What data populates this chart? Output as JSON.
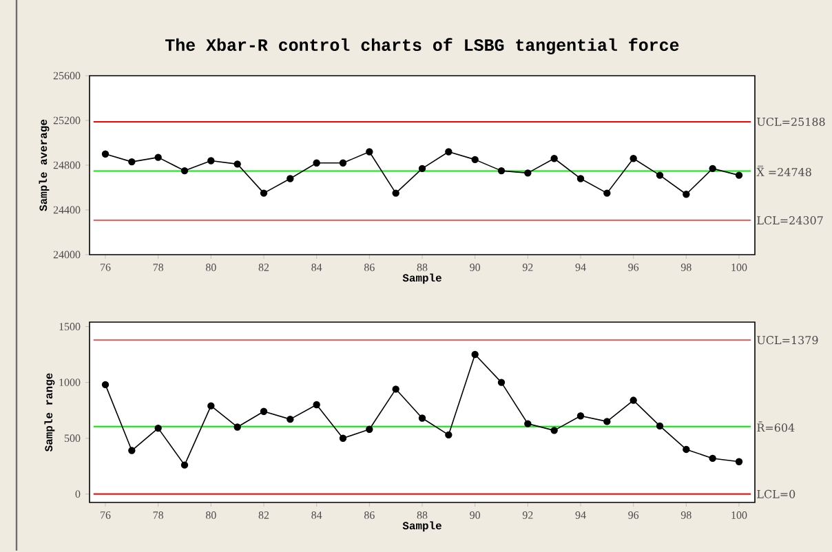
{
  "chart_data": [
    {
      "type": "line",
      "title": "The Xbar-R control charts of LSBG tangential force",
      "xlabel": "Sample",
      "ylabel": "Sample average",
      "x": [
        76,
        77,
        78,
        79,
        80,
        81,
        82,
        83,
        84,
        85,
        86,
        87,
        88,
        89,
        90,
        91,
        92,
        93,
        94,
        95,
        96,
        97,
        98,
        99,
        100
      ],
      "series": [
        {
          "color": "#000000",
          "values": [
            24900,
            24830,
            24870,
            24750,
            24840,
            24810,
            24550,
            24680,
            24820,
            24820,
            24920,
            24550,
            24770,
            24920,
            24850,
            24750,
            24730,
            24860,
            24680,
            24550,
            24860,
            24710,
            24540,
            24770,
            24710
          ]
        }
      ],
      "xlim": [
        75.4,
        100.6
      ],
      "ylim": [
        24000,
        25600
      ],
      "xticks": [
        76,
        78,
        80,
        82,
        84,
        86,
        88,
        90,
        92,
        94,
        96,
        98,
        100
      ],
      "yticks": [
        24000,
        24400,
        24800,
        25200,
        25600
      ],
      "ref_lines": [
        {
          "axis": "y",
          "value": 25188,
          "label": "UCL=25188",
          "color": "#ff0000"
        },
        {
          "axis": "y",
          "value": 24748,
          "label": "X̿ =24748",
          "color": "#00ee00"
        },
        {
          "axis": "y",
          "value": 24307,
          "label": "LCL=24307",
          "color": "#ff5a5a"
        }
      ],
      "marker": "circle",
      "line_style": "solid"
    },
    {
      "type": "line",
      "xlabel": "Sample",
      "ylabel": "Sample range",
      "x": [
        76,
        77,
        78,
        79,
        80,
        81,
        82,
        83,
        84,
        85,
        86,
        87,
        88,
        89,
        90,
        91,
        92,
        93,
        94,
        95,
        96,
        97,
        98,
        99,
        100
      ],
      "series": [
        {
          "color": "#000000",
          "values": [
            980,
            390,
            590,
            260,
            790,
            600,
            740,
            670,
            800,
            500,
            580,
            940,
            680,
            530,
            1250,
            1000,
            630,
            570,
            700,
            650,
            840,
            610,
            400,
            320,
            290
          ]
        }
      ],
      "xlim": [
        75.4,
        100.6
      ],
      "ylim": [
        -75,
        1540
      ],
      "xticks": [
        76,
        78,
        80,
        82,
        84,
        86,
        88,
        90,
        92,
        94,
        96,
        98,
        100
      ],
      "yticks": [
        0,
        500,
        1000,
        1500
      ],
      "ref_lines": [
        {
          "axis": "y",
          "value": 1379,
          "label": "UCL=1379",
          "color": "#ff5a5a"
        },
        {
          "axis": "y",
          "value": 604,
          "label": "R̄=604",
          "color": "#00ee00"
        },
        {
          "axis": "y",
          "value": 0,
          "label": "LCL=0",
          "color": "#ff0000"
        }
      ],
      "marker": "circle",
      "line_style": "solid"
    }
  ]
}
